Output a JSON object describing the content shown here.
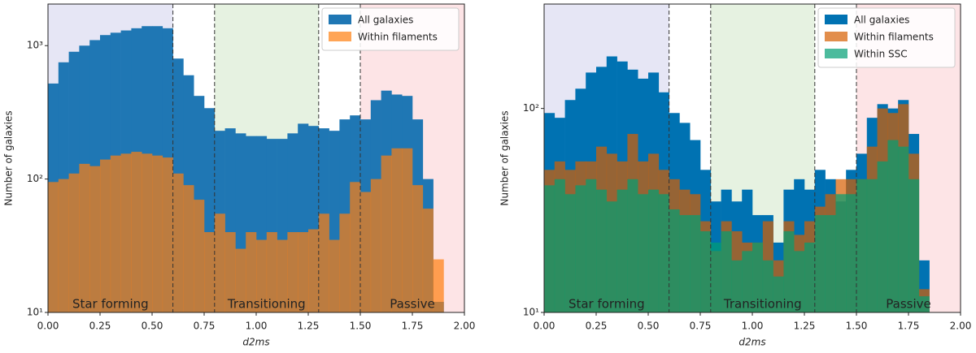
{
  "chart_data": [
    {
      "type": "histogram",
      "xlabel": "d2ms",
      "ylabel": "Number of galaxies",
      "log_y": true,
      "legend": "upper right",
      "bins": [
        0,
        0.05,
        0.1,
        0.15,
        0.2,
        0.25,
        0.3,
        0.35,
        0.4,
        0.45,
        0.5,
        0.55,
        0.6,
        0.65,
        0.7,
        0.75,
        0.8,
        0.85,
        0.9,
        0.95,
        1.0,
        1.05,
        1.1,
        1.15,
        1.2,
        1.25,
        1.3,
        1.35,
        1.4,
        1.45,
        1.5,
        1.55,
        1.6,
        1.65,
        1.7,
        1.75,
        1.8,
        1.85,
        1.9
      ],
      "series": [
        {
          "name": "All galaxies",
          "color": "#1f77b4",
          "alpha": 1,
          "values": [
            520,
            750,
            900,
            1000,
            1100,
            1200,
            1250,
            1300,
            1350,
            1400,
            1400,
            1350,
            800,
            600,
            420,
            340,
            230,
            240,
            220,
            210,
            210,
            200,
            200,
            220,
            260,
            250,
            240,
            230,
            280,
            300,
            280,
            390,
            460,
            430,
            420,
            280,
            100,
            12
          ]
        },
        {
          "name": "Within filaments",
          "color": "#ff7f0e",
          "alpha": 0.7,
          "values": [
            95,
            100,
            110,
            130,
            125,
            140,
            150,
            155,
            160,
            155,
            150,
            145,
            110,
            90,
            70,
            40,
            55,
            40,
            30,
            40,
            35,
            40,
            35,
            40,
            40,
            42,
            55,
            35,
            55,
            95,
            80,
            100,
            150,
            170,
            170,
            90,
            60,
            25
          ]
        }
      ],
      "regions": [
        {
          "label": "Star forming",
          "xmin": 0,
          "xmax": 0.6,
          "color": "#e6e6f5"
        },
        {
          "label": "Transitioning",
          "xmin": 0.8,
          "xmax": 1.3,
          "color": "#e6f2e1"
        },
        {
          "label": "Passive",
          "xmin": 1.5,
          "xmax": 2.0,
          "color": "#fde4e6"
        }
      ],
      "vlines": [
        0.6,
        0.8,
        1.3,
        1.5
      ],
      "xlim": [
        0,
        2
      ],
      "xticks": [
        {
          "value": 0,
          "label": "0.00"
        },
        {
          "value": 0.25,
          "label": "0.25"
        },
        {
          "value": 0.5,
          "label": "0.50"
        },
        {
          "value": 0.75,
          "label": "0.75"
        },
        {
          "value": 1,
          "label": "1.00"
        },
        {
          "value": 1.25,
          "label": "1.25"
        },
        {
          "value": 1.5,
          "label": "1.50"
        },
        {
          "value": 1.75,
          "label": "1.75"
        },
        {
          "value": 2,
          "label": "2.00"
        }
      ],
      "ylim": [
        10,
        2050
      ],
      "yticks": [
        {
          "value": 10,
          "label": "10¹"
        },
        {
          "value": 100,
          "label": "10²"
        },
        {
          "value": 1000,
          "label": "10³"
        }
      ]
    },
    {
      "type": "histogram",
      "xlabel": "d2ms",
      "ylabel": "Number of galaxies",
      "log_y": true,
      "legend": "upper right",
      "bins": [
        0,
        0.05,
        0.1,
        0.15,
        0.2,
        0.25,
        0.3,
        0.35,
        0.4,
        0.45,
        0.5,
        0.55,
        0.6,
        0.65,
        0.7,
        0.75,
        0.8,
        0.85,
        0.9,
        0.95,
        1.0,
        1.05,
        1.1,
        1.15,
        1.2,
        1.25,
        1.3,
        1.35,
        1.4,
        1.45,
        1.5,
        1.55,
        1.6,
        1.65,
        1.7,
        1.75,
        1.8,
        1.85
      ],
      "series": [
        {
          "name": "All galaxies",
          "color": "#0072b2",
          "alpha": 1,
          "values": [
            95,
            90,
            110,
            125,
            150,
            160,
            180,
            170,
            155,
            140,
            150,
            120,
            95,
            85,
            70,
            50,
            35,
            40,
            35,
            40,
            30,
            30,
            22,
            40,
            45,
            40,
            50,
            45,
            35,
            50,
            60,
            90,
            105,
            100,
            110,
            75,
            18
          ]
        },
        {
          "name": "Within filaments",
          "color": "#d55e00",
          "alpha": 0.7,
          "values": [
            50,
            55,
            50,
            55,
            55,
            65,
            60,
            55,
            75,
            55,
            60,
            50,
            45,
            40,
            38,
            28,
            20,
            28,
            25,
            22,
            22,
            28,
            18,
            28,
            24,
            28,
            33,
            38,
            45,
            45,
            45,
            65,
            100,
            95,
            105,
            60,
            13
          ]
        },
        {
          "name": "Within SSC",
          "color": "#009e73",
          "alpha": 0.7,
          "values": [
            42,
            45,
            38,
            42,
            45,
            40,
            35,
            40,
            45,
            38,
            40,
            38,
            32,
            30,
            30,
            25,
            22,
            25,
            18,
            20,
            22,
            18,
            15,
            25,
            20,
            22,
            30,
            30,
            38,
            38,
            45,
            45,
            55,
            70,
            65,
            45,
            12
          ]
        }
      ],
      "regions": [
        {
          "label": "Star forming",
          "xmin": 0,
          "xmax": 0.6,
          "color": "#e6e6f5"
        },
        {
          "label": "Transitioning",
          "xmin": 0.8,
          "xmax": 1.3,
          "color": "#e6f2e1"
        },
        {
          "label": "Passive",
          "xmin": 1.5,
          "xmax": 2.0,
          "color": "#fde4e6"
        }
      ],
      "vlines": [
        0.6,
        0.8,
        1.3,
        1.5
      ],
      "xlim": [
        0,
        2
      ],
      "xticks": [
        {
          "value": 0,
          "label": "0.00"
        },
        {
          "value": 0.25,
          "label": "0.25"
        },
        {
          "value": 0.5,
          "label": "0.50"
        },
        {
          "value": 0.75,
          "label": "0.75"
        },
        {
          "value": 1,
          "label": "1.00"
        },
        {
          "value": 1.25,
          "label": "1.25"
        },
        {
          "value": 1.5,
          "label": "1.50"
        },
        {
          "value": 1.75,
          "label": "1.75"
        },
        {
          "value": 2,
          "label": "2.00"
        }
      ],
      "ylim": [
        10,
        325
      ],
      "yticks": [
        {
          "value": 10,
          "label": "10¹"
        },
        {
          "value": 100,
          "label": "10²"
        }
      ]
    }
  ]
}
